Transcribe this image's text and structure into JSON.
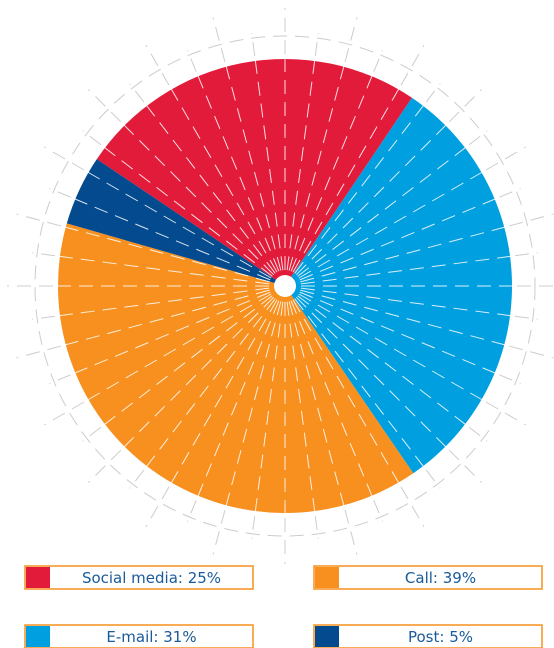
{
  "chart_data": {
    "type": "pie",
    "values": [
      25,
      31,
      39,
      5
    ],
    "value_labels": [
      "Social media: 25%",
      "E-mail: 31%",
      "Call: 39%",
      "Post: 5%"
    ],
    "colors": [
      "#e31b3a",
      "#009fe0",
      "#f7901e",
      "#034a8e"
    ],
    "legend_border": "#f7901e"
  }
}
